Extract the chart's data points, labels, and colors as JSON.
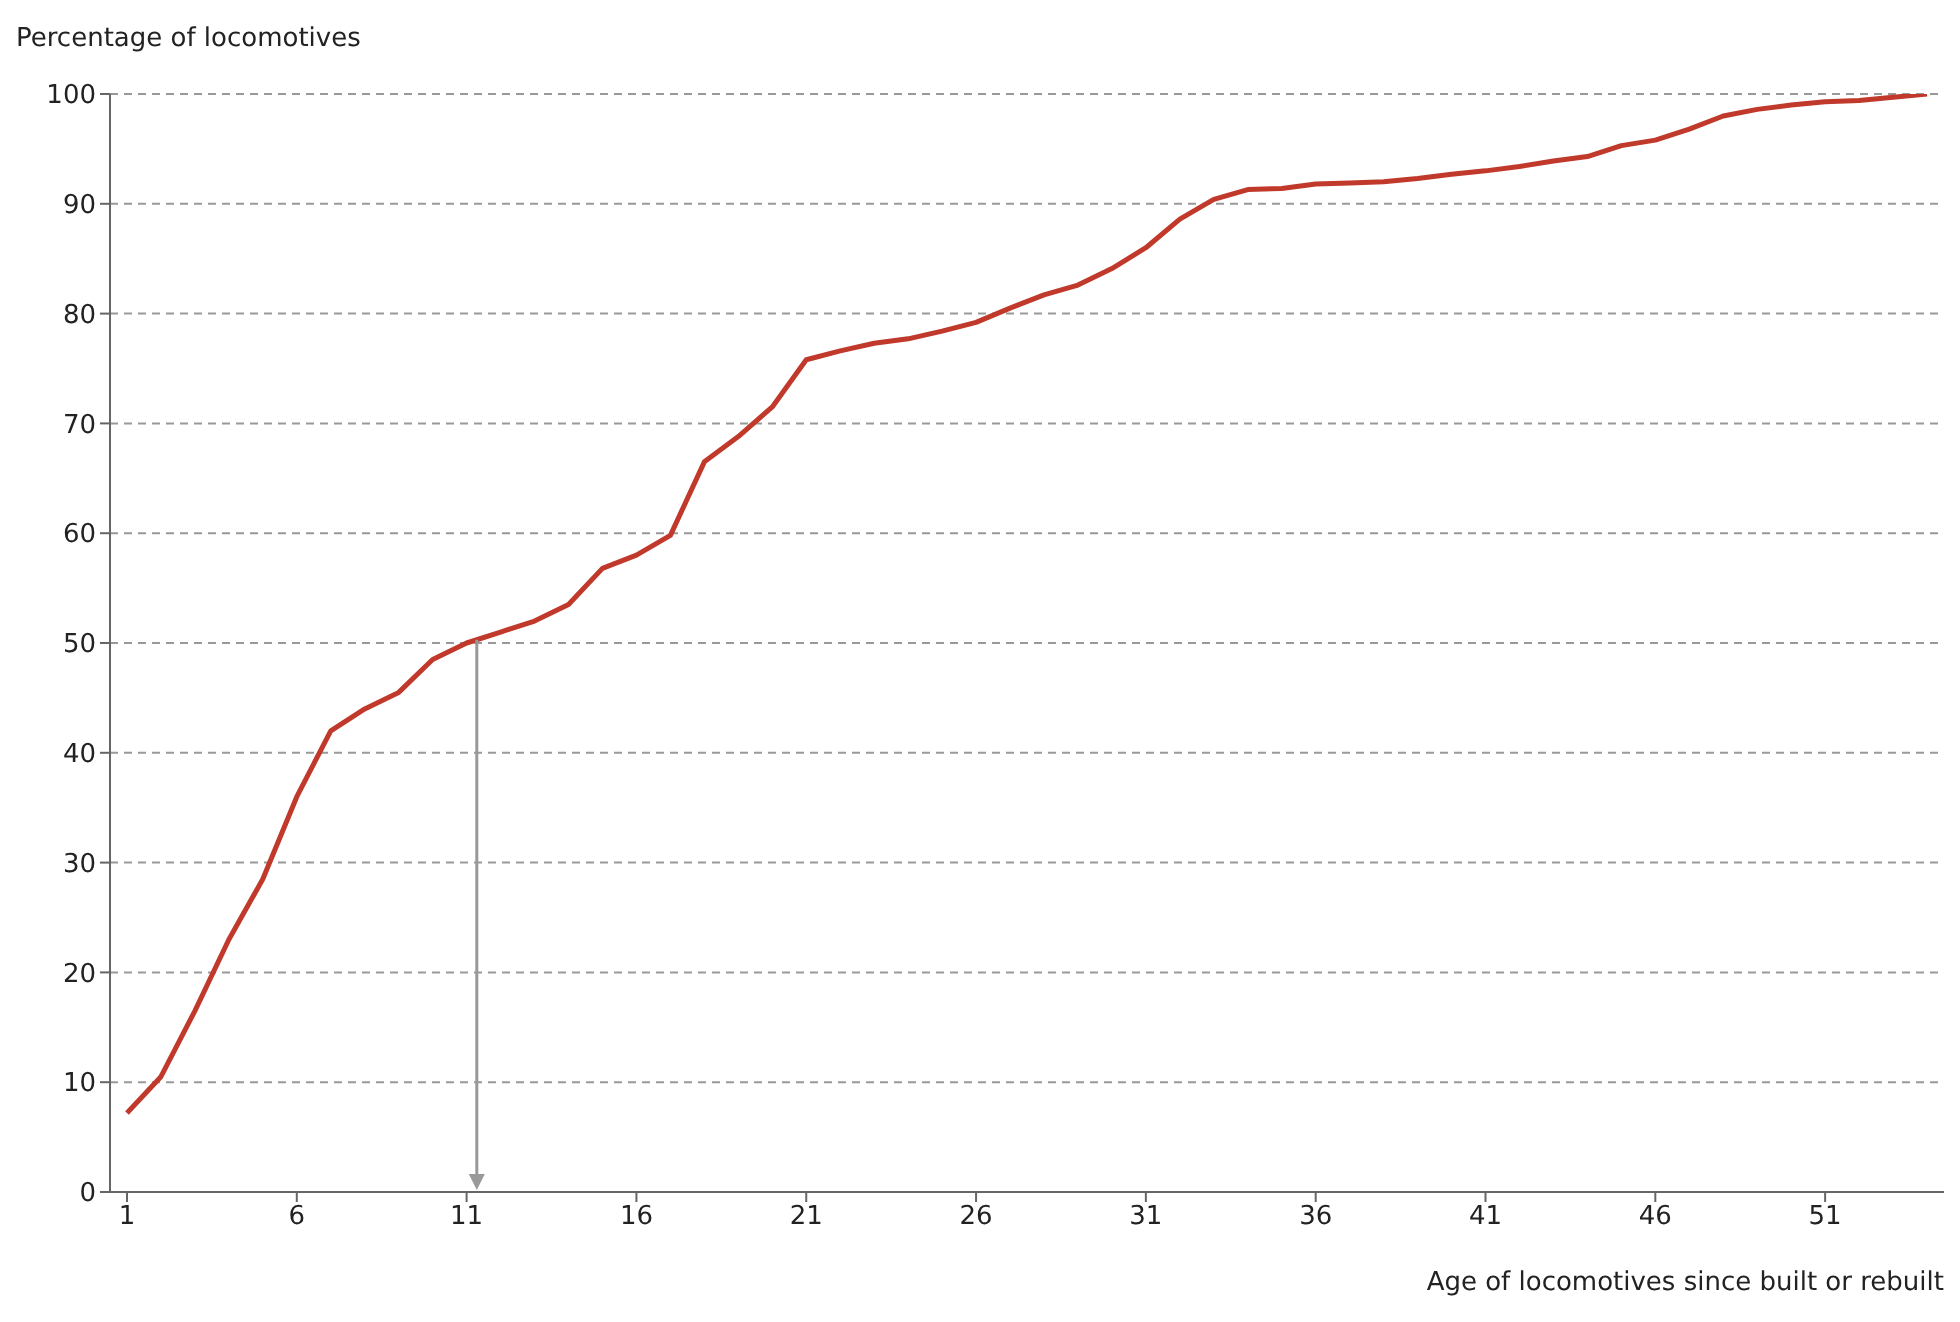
{
  "chart_data": {
    "type": "line",
    "ylabel": "Percentage of locomotives",
    "xlabel": "Age of locomotives since built or rebuilt",
    "x": [
      1,
      2,
      3,
      4,
      5,
      6,
      7,
      8,
      9,
      10,
      11,
      12,
      13,
      14,
      15,
      16,
      17,
      18,
      19,
      20,
      21,
      22,
      23,
      24,
      25,
      26,
      27,
      28,
      29,
      30,
      31,
      32,
      33,
      34,
      35,
      36,
      37,
      38,
      39,
      40,
      41,
      42,
      43,
      44,
      45,
      46,
      47,
      48,
      49,
      50,
      51,
      52,
      53,
      54
    ],
    "series": [
      {
        "color": "#c0392b",
        "values": [
          7.2,
          10.5,
          16.5,
          23,
          28.5,
          36,
          42,
          44,
          45.5,
          48.5,
          50,
          51,
          52,
          53.5,
          56.8,
          58,
          59.8,
          66.5,
          68.8,
          71.5,
          75.8,
          76.6,
          77.3,
          77.7,
          78.4,
          79.2,
          80.5,
          81.7,
          82.6,
          84.1,
          86,
          88.6,
          90.4,
          91.3,
          91.4,
          91.8,
          91.9,
          92,
          92.3,
          92.7,
          93,
          93.4,
          93.9,
          94.3,
          95.3,
          95.8,
          96.8,
          98,
          98.6,
          99,
          99.3,
          99.4,
          99.7,
          100
        ]
      }
    ],
    "xlim": [
      0.5,
      54.5
    ],
    "xticks": [
      1,
      6,
      11,
      16,
      21,
      26,
      31,
      36,
      41,
      46,
      51
    ],
    "ylim": [
      0,
      100
    ],
    "yticks": [
      0,
      10,
      20,
      30,
      40,
      50,
      60,
      70,
      80,
      90,
      100
    ],
    "grid": "y",
    "marker": "none",
    "line_style": "solid",
    "ref_lines": [
      {
        "axis": "x",
        "value": 11.3,
        "color": "#999999"
      }
    ]
  }
}
